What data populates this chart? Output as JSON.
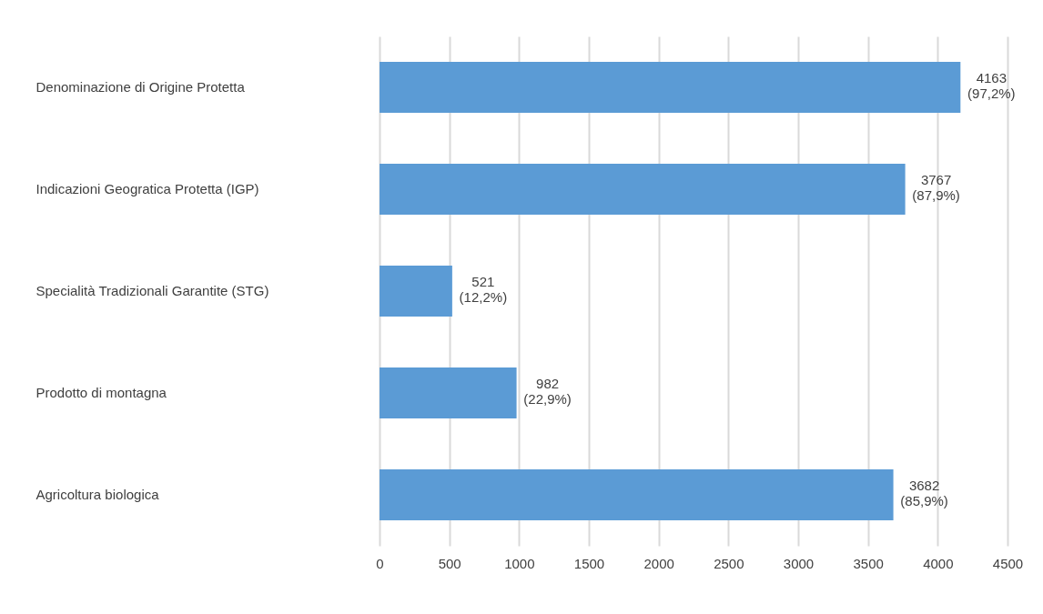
{
  "chart_data": {
    "type": "bar",
    "orientation": "horizontal",
    "categories": [
      "Denominazione di Origine Protetta",
      "Indicazioni Geogratica Protetta (IGP)",
      "Specialità Tradizionali Garantite (STG)",
      "Prodotto di montagna",
      "Agricoltura biologica"
    ],
    "values": [
      4163,
      3767,
      521,
      982,
      3682
    ],
    "value_labels": [
      "4163\n(97,2%)",
      "3767\n(87,9%)",
      "521\n(12,2%)",
      "982\n(22,9%)",
      "3682\n(85,9%)"
    ],
    "color": "#5b9bd5",
    "xlim": [
      0,
      4500
    ],
    "xticks": [
      0,
      500,
      1000,
      1500,
      2000,
      2500,
      3000,
      3500,
      4000,
      4500
    ],
    "grid": "x"
  }
}
